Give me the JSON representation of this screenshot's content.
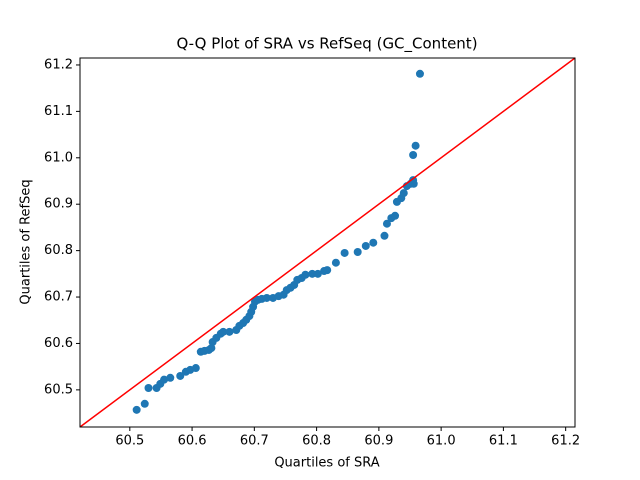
{
  "chart_data": {
    "type": "scatter",
    "title": "Q-Q Plot of SRA vs RefSeq (GC_Content)",
    "x_label": "Quartiles of SRA",
    "y_label": "Quartiles of RefSeq",
    "color": "#1f77b4",
    "reference_line_color": "#ff0000",
    "x": [
      60.511,
      60.524,
      60.53,
      60.543,
      60.549,
      60.555,
      60.565,
      60.581,
      60.59,
      60.597,
      60.606,
      60.614,
      60.62,
      60.627,
      60.631,
      60.633,
      60.639,
      60.646,
      60.65,
      60.66,
      60.671,
      60.676,
      60.682,
      60.687,
      60.692,
      60.695,
      60.698,
      60.701,
      60.706,
      60.712,
      60.72,
      60.73,
      60.739,
      60.747,
      60.752,
      60.758,
      60.764,
      60.769,
      60.776,
      60.782,
      60.793,
      60.802,
      60.812,
      60.817,
      60.831,
      60.845,
      60.866,
      60.879,
      60.891,
      60.909,
      60.913,
      60.92,
      60.926,
      60.929,
      60.936,
      60.94,
      60.945,
      60.951,
      60.955,
      60.956,
      60.955,
      60.959,
      60.966
    ],
    "values": [
      60.457,
      60.47,
      60.504,
      60.504,
      60.513,
      60.522,
      60.526,
      60.53,
      60.539,
      60.543,
      60.547,
      60.582,
      60.584,
      60.586,
      60.59,
      60.603,
      60.612,
      60.621,
      60.625,
      60.625,
      60.629,
      60.638,
      60.644,
      60.651,
      60.659,
      60.668,
      60.679,
      60.69,
      60.694,
      60.696,
      60.698,
      60.698,
      60.702,
      60.705,
      60.715,
      60.72,
      60.726,
      60.737,
      60.741,
      60.748,
      60.75,
      60.75,
      60.756,
      60.758,
      60.774,
      60.795,
      60.797,
      60.81,
      60.817,
      60.832,
      60.858,
      60.87,
      60.875,
      60.905,
      60.913,
      60.924,
      60.939,
      60.944,
      60.952,
      60.944,
      61.006,
      61.026,
      61.181
    ],
    "xlim": [
      60.42,
      61.215
    ],
    "ylim": [
      60.42,
      61.215
    ],
    "xticks": [
      60.5,
      60.6,
      60.7,
      60.8,
      60.9,
      {
        "value": 61,
        "label": "61.0"
      },
      61.1,
      61.2
    ],
    "yticks": [
      60.5,
      60.6,
      60.7,
      60.8,
      60.9,
      {
        "value": 61,
        "label": "61.0"
      },
      61.1,
      61.2
    ]
  }
}
